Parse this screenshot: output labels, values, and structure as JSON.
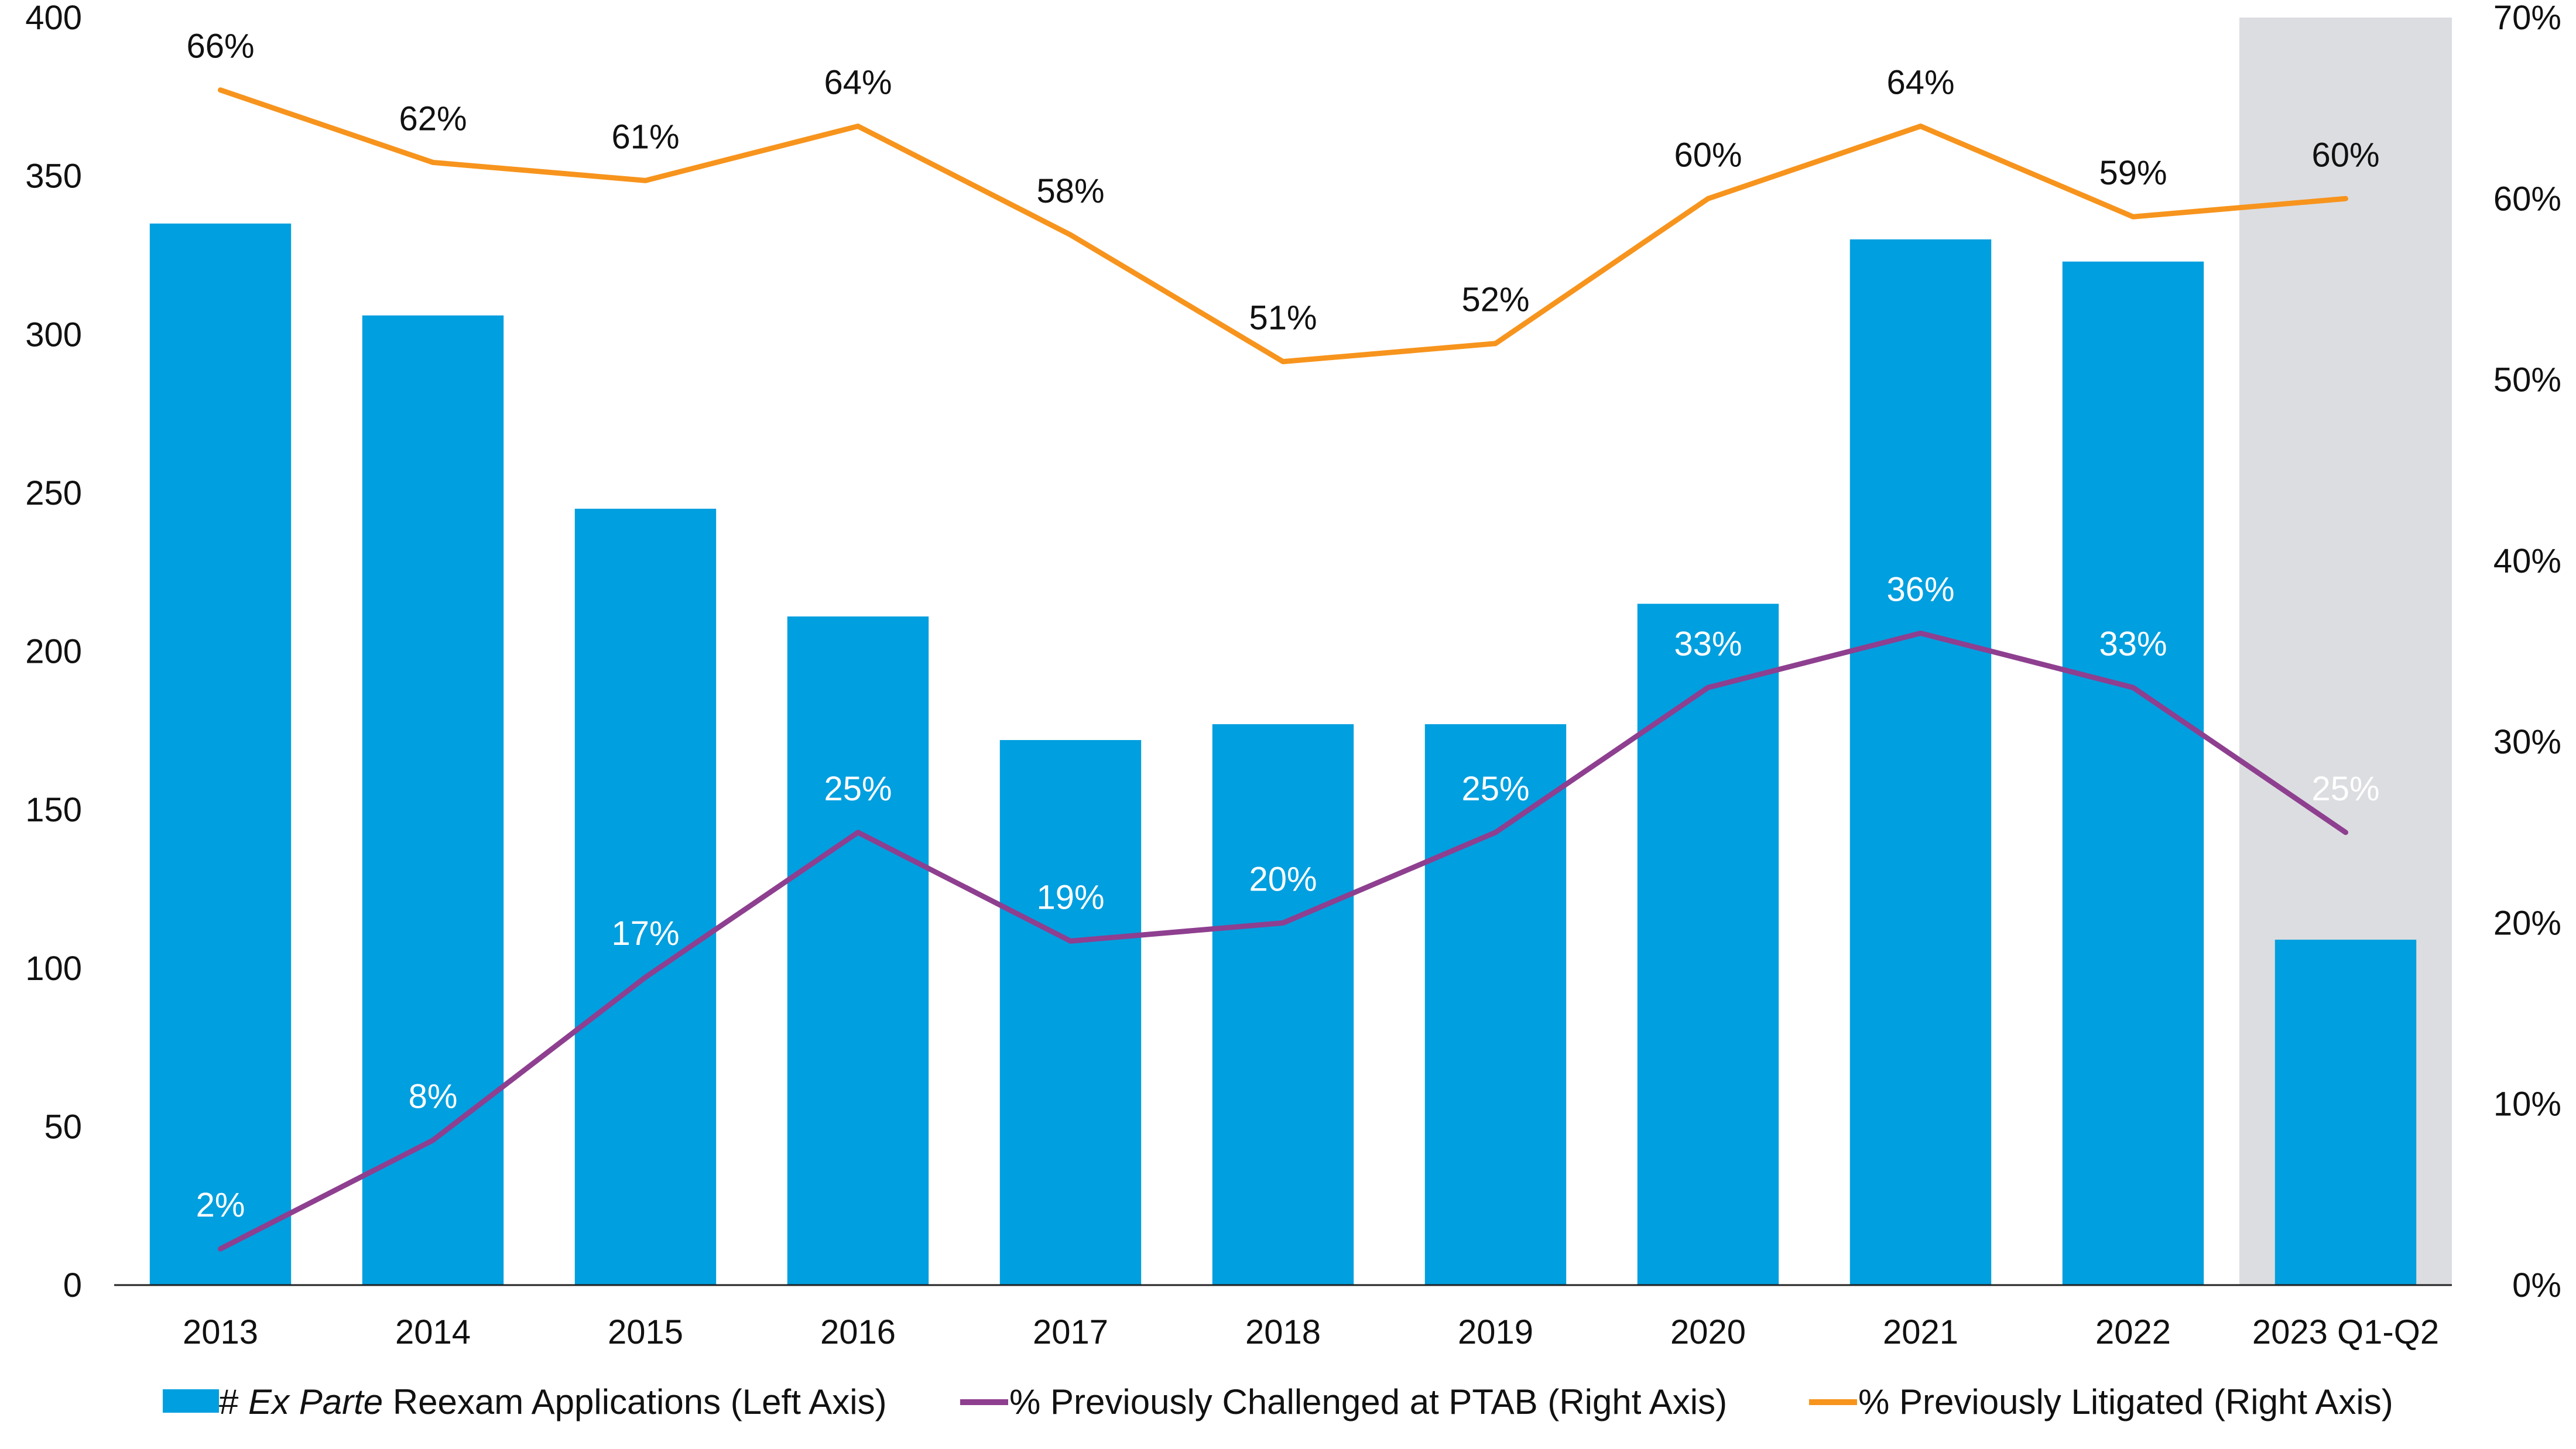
{
  "chart_data": {
    "type": "bar",
    "categories": [
      "2013",
      "2014",
      "2015",
      "2016",
      "2017",
      "2018",
      "2019",
      "2020",
      "2021",
      "2022",
      "2023 Q1-Q2"
    ],
    "highlighted_category": "2023 Q1-Q2",
    "y_left": {
      "ylim": [
        0,
        400
      ],
      "ticks": [
        0,
        50,
        100,
        150,
        200,
        250,
        300,
        350,
        400
      ]
    },
    "y_right": {
      "ylim": [
        0,
        70
      ],
      "ticks": [
        "0%",
        "10%",
        "20%",
        "30%",
        "40%",
        "50%",
        "60%",
        "70%"
      ]
    },
    "series": [
      {
        "name_prefix": "# ",
        "name_italic": "Ex Parte",
        "name_suffix": " Reexam Applications (Left Axis)",
        "kind": "bar",
        "axis": "left",
        "color": "#009fdf",
        "values": [
          335,
          306,
          245,
          211,
          172,
          177,
          177,
          215,
          330,
          323,
          109
        ]
      },
      {
        "name": "% Previously Challenged at PTAB (Right Axis)",
        "kind": "line",
        "axis": "right",
        "color": "#8e3f8f",
        "label_color": "#ffffff",
        "values": [
          2,
          8,
          17,
          25,
          19,
          20,
          25,
          33,
          36,
          33,
          25
        ],
        "labels": [
          "2%",
          "8%",
          "17%",
          "25%",
          "19%",
          "20%",
          "25%",
          "33%",
          "36%",
          "33%",
          "25%"
        ]
      },
      {
        "name": "% Previously Litigated (Right Axis)",
        "kind": "line",
        "axis": "right",
        "color": "#f7941d",
        "label_color": "#111111",
        "values": [
          66,
          62,
          61,
          64,
          58,
          51,
          52,
          60,
          64,
          59,
          60
        ],
        "labels": [
          "66%",
          "62%",
          "61%",
          "64%",
          "58%",
          "51%",
          "52%",
          "60%",
          "64%",
          "59%",
          "60%"
        ]
      }
    ],
    "grid": false,
    "legend": "bottom"
  }
}
